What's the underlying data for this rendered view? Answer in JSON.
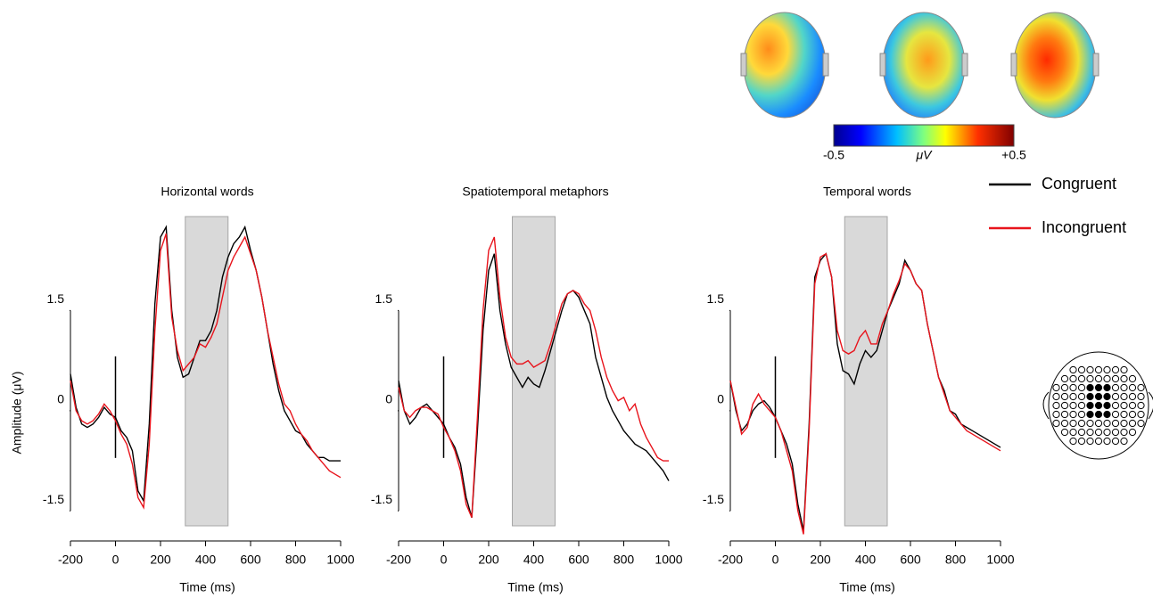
{
  "chart_data": [
    {
      "type": "line",
      "title": "Horizontal words",
      "xlabel": "Time (ms)",
      "ylabel": "Amplitude  (μV)",
      "x": [
        -200,
        -175,
        -150,
        -125,
        -100,
        -75,
        -50,
        -25,
        0,
        25,
        50,
        75,
        100,
        125,
        150,
        175,
        200,
        225,
        250,
        275,
        300,
        325,
        350,
        375,
        400,
        425,
        450,
        475,
        500,
        525,
        550,
        575,
        600,
        625,
        650,
        675,
        700,
        725,
        750,
        775,
        800,
        825,
        850,
        875,
        900,
        925,
        950,
        975,
        1000
      ],
      "series": [
        {
          "name": "Congruent",
          "color": "#000000",
          "values": [
            0.55,
            0.05,
            -0.2,
            -0.25,
            -0.2,
            -0.1,
            0.05,
            -0.05,
            -0.1,
            -0.3,
            -0.4,
            -0.6,
            -1.2,
            -1.35,
            -0.2,
            1.6,
            2.6,
            2.75,
            1.5,
            0.8,
            0.5,
            0.55,
            0.8,
            1.05,
            1.05,
            1.2,
            1.5,
            2.0,
            2.3,
            2.5,
            2.6,
            2.75,
            2.4,
            2.1,
            1.7,
            1.2,
            0.7,
            0.3,
            0.0,
            -0.15,
            -0.3,
            -0.35,
            -0.5,
            -0.6,
            -0.7,
            -0.7,
            -0.75,
            -0.75,
            -0.75
          ]
        },
        {
          "name": "Incongruent",
          "color": "#e8141c",
          "values": [
            0.45,
            0.0,
            -0.15,
            -0.2,
            -0.15,
            -0.05,
            0.1,
            0.0,
            -0.15,
            -0.35,
            -0.5,
            -0.8,
            -1.3,
            -1.45,
            -0.5,
            1.2,
            2.4,
            2.65,
            1.4,
            0.9,
            0.6,
            0.7,
            0.8,
            1.0,
            0.95,
            1.1,
            1.3,
            1.7,
            2.1,
            2.3,
            2.45,
            2.6,
            2.35,
            2.1,
            1.7,
            1.2,
            0.8,
            0.4,
            0.1,
            0.0,
            -0.2,
            -0.35,
            -0.45,
            -0.6,
            -0.7,
            -0.8,
            -0.9,
            -0.95,
            -1.0
          ]
        }
      ],
      "window": [
        310,
        500
      ],
      "xlim": [
        -200,
        1000
      ],
      "ylim": [
        -1.95,
        3.0
      ],
      "xticks": [
        -200,
        0,
        200,
        400,
        600,
        800,
        1000
      ],
      "yticks": [
        -1.5,
        0,
        1.5
      ]
    },
    {
      "type": "line",
      "title": "Spatiotemporal metaphors",
      "xlabel": "Time (ms)",
      "x": [
        -200,
        -175,
        -150,
        -125,
        -100,
        -75,
        -50,
        -25,
        0,
        25,
        50,
        75,
        100,
        125,
        150,
        175,
        200,
        225,
        250,
        275,
        300,
        325,
        350,
        375,
        400,
        425,
        450,
        475,
        500,
        525,
        550,
        575,
        600,
        625,
        650,
        675,
        700,
        725,
        750,
        775,
        800,
        825,
        850,
        875,
        900,
        925,
        950,
        975,
        1000
      ],
      "series": [
        {
          "name": "Congruent",
          "color": "#000000",
          "values": [
            0.45,
            0.0,
            -0.2,
            -0.1,
            0.05,
            0.1,
            0.0,
            -0.1,
            -0.2,
            -0.4,
            -0.55,
            -0.8,
            -1.3,
            -1.6,
            -0.3,
            1.2,
            2.1,
            2.35,
            1.5,
            1.0,
            0.65,
            0.5,
            0.35,
            0.5,
            0.4,
            0.35,
            0.6,
            0.9,
            1.2,
            1.5,
            1.75,
            1.8,
            1.7,
            1.5,
            1.3,
            0.8,
            0.5,
            0.2,
            0.0,
            -0.15,
            -0.3,
            -0.4,
            -0.5,
            -0.55,
            -0.6,
            -0.7,
            -0.8,
            -0.9,
            -1.05
          ]
        },
        {
          "name": "Incongruent",
          "color": "#e8141c",
          "values": [
            0.35,
            0.0,
            -0.1,
            0.0,
            0.05,
            0.05,
            0.0,
            -0.05,
            -0.25,
            -0.4,
            -0.6,
            -0.9,
            -1.4,
            -1.6,
            -0.1,
            1.5,
            2.4,
            2.6,
            1.7,
            1.1,
            0.8,
            0.7,
            0.7,
            0.75,
            0.65,
            0.7,
            0.75,
            1.0,
            1.3,
            1.6,
            1.75,
            1.8,
            1.75,
            1.6,
            1.5,
            1.2,
            0.8,
            0.5,
            0.3,
            0.15,
            0.2,
            0.0,
            0.1,
            -0.2,
            -0.4,
            -0.55,
            -0.7,
            -0.75,
            -0.75
          ]
        }
      ],
      "window": [
        305,
        495
      ],
      "xlim": [
        -200,
        1000
      ],
      "ylim": [
        -1.95,
        3.0
      ],
      "xticks": [
        -200,
        0,
        200,
        400,
        600,
        800,
        1000
      ],
      "yticks": [
        -1.5,
        0,
        1.5
      ]
    },
    {
      "type": "line",
      "title": "Temporal words",
      "xlabel": "Time (ms)",
      "x": [
        -200,
        -175,
        -150,
        -125,
        -100,
        -75,
        -50,
        -25,
        0,
        25,
        50,
        75,
        100,
        125,
        150,
        175,
        200,
        225,
        250,
        275,
        300,
        325,
        350,
        375,
        400,
        425,
        450,
        475,
        500,
        525,
        550,
        575,
        600,
        625,
        650,
        675,
        700,
        725,
        750,
        775,
        800,
        825,
        850,
        875,
        900,
        925,
        950,
        975,
        1000
      ],
      "series": [
        {
          "name": "Congruent",
          "color": "#000000",
          "values": [
            0.45,
            0.0,
            -0.3,
            -0.2,
            0.0,
            0.1,
            0.15,
            0.05,
            -0.1,
            -0.3,
            -0.5,
            -0.8,
            -1.4,
            -1.8,
            -0.2,
            2.0,
            2.25,
            2.35,
            2.0,
            1.0,
            0.6,
            0.55,
            0.4,
            0.7,
            0.9,
            0.8,
            0.9,
            1.2,
            1.5,
            1.7,
            1.9,
            2.25,
            2.1,
            1.9,
            1.8,
            1.3,
            0.9,
            0.5,
            0.3,
            0.0,
            -0.05,
            -0.2,
            -0.25,
            -0.3,
            -0.35,
            -0.4,
            -0.45,
            -0.5,
            -0.55
          ]
        },
        {
          "name": "Incongruent",
          "color": "#e8141c",
          "values": [
            0.45,
            0.05,
            -0.35,
            -0.25,
            0.1,
            0.25,
            0.1,
            0.0,
            -0.1,
            -0.3,
            -0.6,
            -0.9,
            -1.5,
            -1.85,
            -0.3,
            1.9,
            2.3,
            2.35,
            2.0,
            1.2,
            0.9,
            0.85,
            0.9,
            1.1,
            1.2,
            1.0,
            1.0,
            1.3,
            1.5,
            1.75,
            1.95,
            2.2,
            2.1,
            1.9,
            1.8,
            1.3,
            0.9,
            0.5,
            0.25,
            0.0,
            -0.1,
            -0.2,
            -0.3,
            -0.35,
            -0.4,
            -0.45,
            -0.5,
            -0.55,
            -0.6
          ]
        }
      ],
      "window": [
        308,
        497
      ],
      "xlim": [
        -200,
        1000
      ],
      "ylim": [
        -1.95,
        3.0
      ],
      "xticks": [
        -200,
        0,
        200,
        400,
        600,
        800,
        1000
      ],
      "yticks": [
        -1.5,
        0,
        1.5
      ]
    }
  ],
  "colorbar": {
    "label": "μV",
    "lim": [
      -0.5,
      0.5
    ],
    "ticks": [
      -0.5,
      {
        "value": 0.5,
        "label": "+0.5"
      }
    ]
  }
}
